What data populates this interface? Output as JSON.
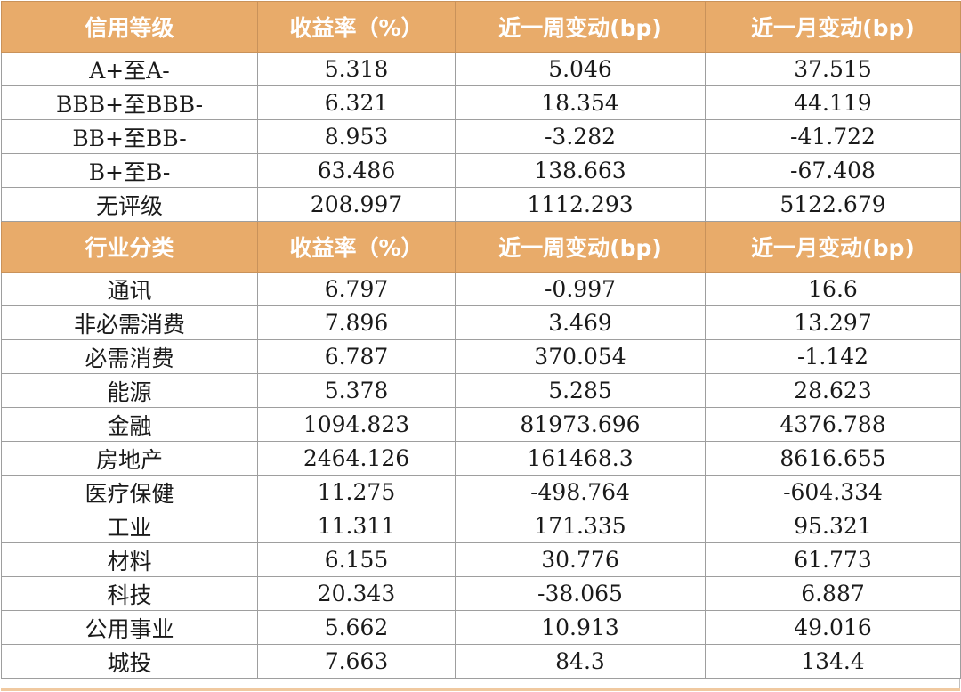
{
  "colors": {
    "header_bg": "#e8ab6a",
    "header_text": "#ffffff",
    "grid_line": "#9e9e9e",
    "cell_text": "#1a1a1a"
  },
  "rating_section": {
    "headers": [
      "信用等级",
      "收益率（%）",
      "近一周变动(bp)",
      "近一月变动(bp)"
    ],
    "rows": [
      [
        "A+至A-",
        "5.318",
        "5.046",
        "37.515"
      ],
      [
        "BBB+至BBB-",
        "6.321",
        "18.354",
        "44.119"
      ],
      [
        "BB+至BB-",
        "8.953",
        "-3.282",
        "-41.722"
      ],
      [
        "B+至B-",
        "63.486",
        "138.663",
        "-67.408"
      ],
      [
        "无评级",
        "208.997",
        "1112.293",
        "5122.679"
      ]
    ]
  },
  "industry_section": {
    "headers": [
      "行业分类",
      "收益率（%）",
      "近一周变动(bp)",
      "近一月变动(bp)"
    ],
    "rows": [
      [
        "通讯",
        "6.797",
        "-0.997",
        "16.6"
      ],
      [
        "非必需消费",
        "7.896",
        "3.469",
        "13.297"
      ],
      [
        "必需消费",
        "6.787",
        "370.054",
        "-1.142"
      ],
      [
        "能源",
        "5.378",
        "5.285",
        "28.623"
      ],
      [
        "金融",
        "1094.823",
        "81973.696",
        "4376.788"
      ],
      [
        "房地产",
        "2464.126",
        "161468.3",
        "8616.655"
      ],
      [
        "医疗保健",
        "11.275",
        "-498.764",
        "-604.334"
      ],
      [
        "工业",
        "11.311",
        "171.335",
        "95.321"
      ],
      [
        "材料",
        "6.155",
        "30.776",
        "61.773"
      ],
      [
        "科技",
        "20.343",
        "-38.065",
        "6.887"
      ],
      [
        "公用事业",
        "5.662",
        "10.913",
        "49.016"
      ],
      [
        "城投",
        "7.663",
        "84.3",
        "134.4"
      ]
    ]
  }
}
